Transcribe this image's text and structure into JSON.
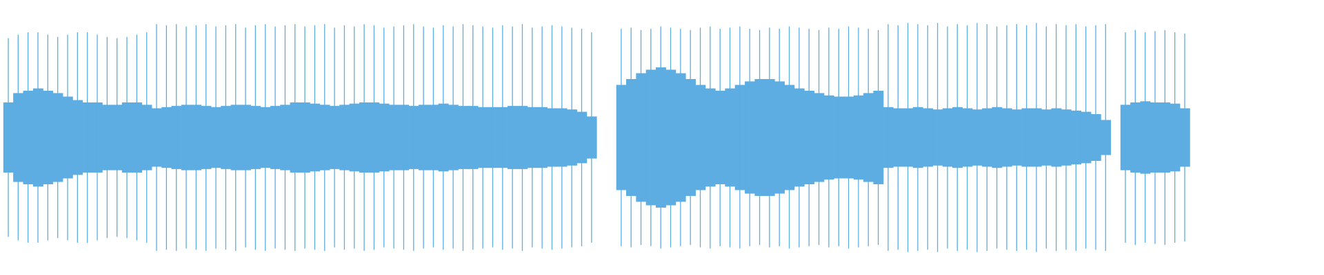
{
  "chart_data": {
    "type": "waveform",
    "ylim": [
      -1,
      1
    ],
    "series": [
      {
        "color": "#5dade2",
        "values": [
          0.85,
          0.88,
          0.9,
          0.9,
          0.88,
          0.86,
          0.88,
          0.9,
          0.9,
          0.88,
          0.86,
          0.85,
          0.86,
          0.88,
          0.9,
          0.97,
          0.96,
          0.97,
          0.95,
          0.96,
          0.97,
          0.95,
          0.96,
          0.97,
          0.94,
          0.96,
          0.97,
          0.95,
          0.96,
          0.97,
          0.95,
          0.96,
          0.97,
          0.94,
          0.96,
          0.95,
          0.97,
          0.96,
          0.94,
          0.95,
          0.96,
          0.97,
          0.95,
          0.94,
          0.96,
          0.95,
          0.97,
          0.96,
          0.95,
          0.94,
          0.96,
          0.95,
          0.97,
          0.94,
          0.95,
          0.96,
          0.95,
          0.94,
          0.93,
          0.9,
          null,
          null,
          0.93,
          0.94,
          0.92,
          0.93,
          0.95,
          0.94,
          0.93,
          0.92,
          0.94,
          0.95,
          0.93,
          0.94,
          0.95,
          0.93,
          0.92,
          0.94,
          0.93,
          0.95,
          0.94,
          0.93,
          0.92,
          0.94,
          0.93,
          0.95,
          0.94,
          0.93,
          0.92,
          0.97,
          0.96,
          0.98,
          0.97,
          0.96,
          0.98,
          0.95,
          0.97,
          0.96,
          0.98,
          0.97,
          0.95,
          0.96,
          0.97,
          0.96,
          0.98,
          0.95,
          0.97,
          0.96,
          0.97,
          0.95,
          0.96,
          0.97,
          null,
          0.9,
          0.92,
          0.9,
          0.91,
          0.92,
          0.9,
          0.89
        ]
      },
      {
        "color": "#5dade2",
        "values": [
          0.3,
          0.38,
          0.4,
          0.42,
          0.4,
          0.38,
          0.35,
          0.32,
          0.3,
          0.3,
          0.28,
          0.28,
          0.3,
          0.3,
          0.28,
          0.25,
          0.26,
          0.27,
          0.28,
          0.28,
          0.27,
          0.26,
          0.27,
          0.28,
          0.28,
          0.27,
          0.26,
          0.27,
          0.28,
          0.3,
          0.3,
          0.29,
          0.28,
          0.27,
          0.28,
          0.29,
          0.3,
          0.3,
          0.29,
          0.28,
          0.28,
          0.27,
          0.28,
          0.28,
          0.29,
          0.28,
          0.27,
          0.27,
          0.26,
          0.26,
          0.26,
          0.27,
          0.27,
          0.26,
          0.26,
          0.25,
          0.25,
          0.24,
          0.22,
          0.18,
          null,
          null,
          0.45,
          0.5,
          0.55,
          0.58,
          0.6,
          0.58,
          0.55,
          0.5,
          0.45,
          0.42,
          0.4,
          0.42,
          0.45,
          0.48,
          0.5,
          0.5,
          0.48,
          0.45,
          0.42,
          0.4,
          0.38,
          0.36,
          0.35,
          0.35,
          0.36,
          0.38,
          0.4,
          0.26,
          0.25,
          0.25,
          0.26,
          0.25,
          0.24,
          0.25,
          0.26,
          0.25,
          0.24,
          0.25,
          0.26,
          0.25,
          0.24,
          0.25,
          0.25,
          0.24,
          0.25,
          0.24,
          0.23,
          0.22,
          0.2,
          0.15,
          null,
          0.28,
          0.3,
          0.31,
          0.3,
          0.3,
          0.29,
          0.25
        ]
      }
    ]
  }
}
